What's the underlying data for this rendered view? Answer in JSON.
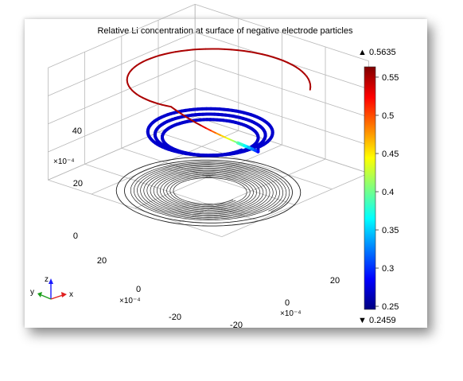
{
  "chart_data": {
    "type": "3d-line",
    "title": "Relative Li concentration at surface of negative electrode particles",
    "z_ticks": [
      "0",
      "20",
      "40"
    ],
    "z_scale_label": "×10⁻⁴",
    "y_ticks": [
      "20",
      "0",
      "-20"
    ],
    "y_scale_label": "×10⁻⁴",
    "x_ticks": [
      "-20",
      "0",
      "20"
    ],
    "x_scale_label": "×10⁻⁴",
    "colorbar": {
      "max_label": "▲ 0.5635",
      "min_label": "▼ 0.2459",
      "max": 0.5635,
      "min": 0.2459,
      "ticks": [
        "0.55",
        "0.5",
        "0.45",
        "0.4",
        "0.35",
        "0.3",
        "0.25"
      ],
      "tick_values": [
        0.55,
        0.5,
        0.45,
        0.4,
        0.35,
        0.3,
        0.25
      ],
      "colormap": [
        "#00007f",
        "#0000ff",
        "#007fff",
        "#00ffff",
        "#7fff7f",
        "#ffff00",
        "#ff7f00",
        "#ff0000",
        "#7f0000"
      ]
    },
    "series": [
      {
        "description": "spiral tube colored by concentration",
        "value_range": [
          0.2459,
          0.5635
        ]
      },
      {
        "description": "spiral geometry outline"
      }
    ],
    "triad": {
      "z": "z",
      "y": "y",
      "x": "x"
    }
  }
}
